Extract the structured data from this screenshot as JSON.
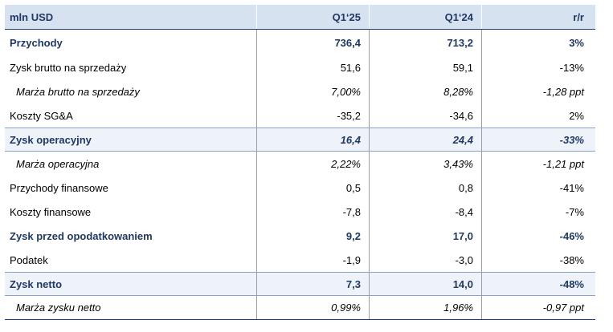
{
  "header": {
    "label": "mln USD",
    "col1": "Q1‘25",
    "col2": "Q1‘24",
    "col3": "r/r"
  },
  "rows": [
    {
      "label": "Przychody",
      "v1": "736,4",
      "v2": "713,2",
      "v3": "3%"
    },
    {
      "label": "Zysk brutto na sprzedaży",
      "v1": "51,6",
      "v2": "59,1",
      "v3": "-13%"
    },
    {
      "label": "Marża brutto na sprzedaży",
      "v1": "7,00%",
      "v2": "8,28%",
      "v3": "-1,28 ppt"
    },
    {
      "label": "Koszty SG&A",
      "v1": "-35,2",
      "v2": "-34,6",
      "v3": "2%"
    },
    {
      "label": "Zysk operacyjny",
      "v1": "16,4",
      "v2": "24,4",
      "v3": "-33%"
    },
    {
      "label": "Marża operacyjna",
      "v1": "2,22%",
      "v2": "3,43%",
      "v3": "-1,21 ppt"
    },
    {
      "label": "Przychody finansowe",
      "v1": "0,5",
      "v2": "0,8",
      "v3": "-41%"
    },
    {
      "label": "Koszty finansowe",
      "v1": "-7,8",
      "v2": "-8,4",
      "v3": "-7%"
    },
    {
      "label": "Zysk przed opodatkowaniem",
      "v1": "9,2",
      "v2": "17,0",
      "v3": "-46%"
    },
    {
      "label": "Podatek",
      "v1": "-1,9",
      "v2": "-3,0",
      "v3": "-38%"
    },
    {
      "label": "Zysk netto",
      "v1": "7,3",
      "v2": "14,0",
      "v3": "-48%"
    },
    {
      "label": "Marża zysku netto",
      "v1": "0,99%",
      "v2": "1,96%",
      "v3": "-0,97 ppt"
    }
  ],
  "colors": {
    "header_bg": "#d7e2f1",
    "accent": "#1f3864",
    "shade": "#eef3fa",
    "rule": "#8aa1c7"
  }
}
